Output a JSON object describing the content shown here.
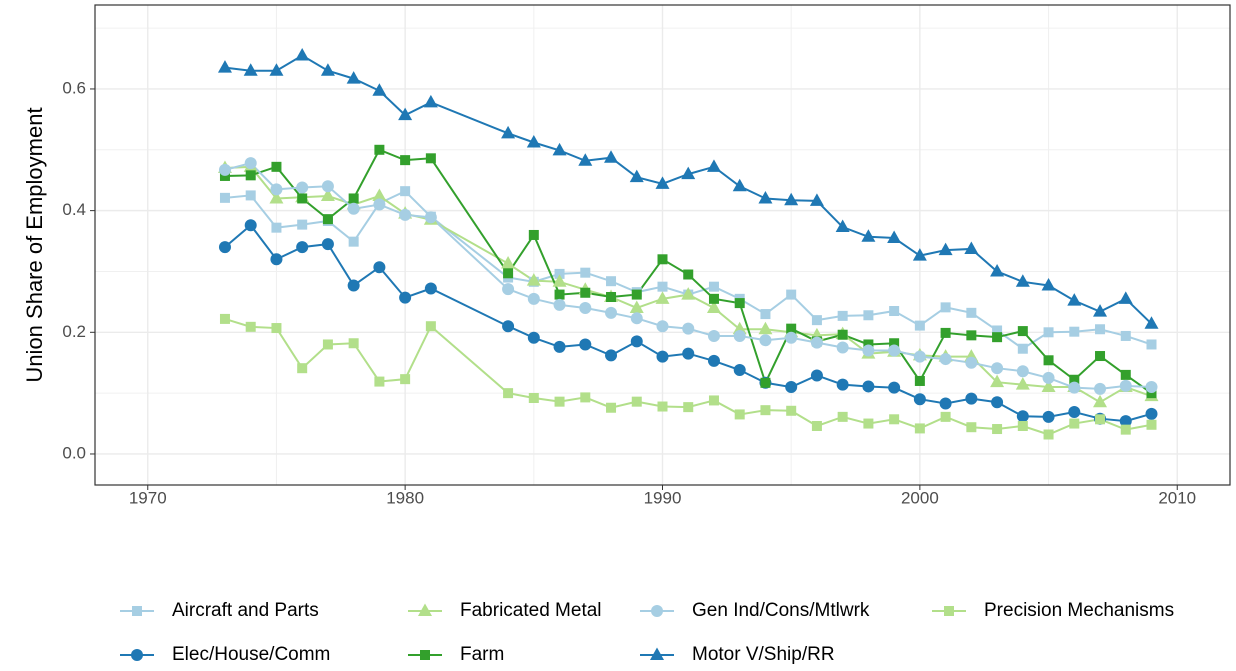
{
  "chart_data": {
    "type": "line",
    "y_label": "Union Share of Employment",
    "x": [
      1973,
      1974,
      1975,
      1976,
      1977,
      1978,
      1979,
      1980,
      1981,
      1984,
      1985,
      1986,
      1987,
      1988,
      1989,
      1990,
      1991,
      1992,
      1993,
      1994,
      1995,
      1996,
      1997,
      1998,
      1999,
      2000,
      2001,
      2002,
      2003,
      2004,
      2005,
      2006,
      2007,
      2008,
      2009
    ],
    "xlim": [
      1967.95,
      2012.05
    ],
    "xticks": [
      1970,
      1980,
      1990,
      2000,
      2010
    ],
    "ylim": [
      -0.051,
      0.738
    ],
    "yticks": [
      {
        "value": 0,
        "label": "0.0"
      },
      0.2,
      0.4,
      0.6
    ],
    "grid": true,
    "legend": "bottom",
    "series": [
      {
        "name": "Aircraft and Parts",
        "color": "#a6cee3",
        "marker": "square",
        "values": [
          0.421,
          0.425,
          0.372,
          0.377,
          0.383,
          0.349,
          0.412,
          0.432,
          0.39,
          0.29,
          0.283,
          0.296,
          0.298,
          0.284,
          0.266,
          0.275,
          0.262,
          0.275,
          0.255,
          0.23,
          0.262,
          0.22,
          0.227,
          0.228,
          0.235,
          0.211,
          0.241,
          0.232,
          0.203,
          0.173,
          0.2,
          0.201,
          0.205,
          0.194,
          0.18
        ]
      },
      {
        "name": "Elec/House/Comm",
        "color": "#1f78b4",
        "marker": "circle",
        "values": [
          0.34,
          0.376,
          0.32,
          0.34,
          0.345,
          0.277,
          0.307,
          0.257,
          0.272,
          0.21,
          0.191,
          0.176,
          0.18,
          0.162,
          0.185,
          0.16,
          0.165,
          0.153,
          0.138,
          0.117,
          0.11,
          0.129,
          0.114,
          0.111,
          0.109,
          0.09,
          0.083,
          0.091,
          0.085,
          0.062,
          0.061,
          0.069,
          0.058,
          0.054,
          0.066
        ]
      },
      {
        "name": "Fabricated Metal",
        "color": "#b2df8a",
        "marker": "triangle",
        "values": [
          0.47,
          0.472,
          0.42,
          0.422,
          0.424,
          0.41,
          0.424,
          0.395,
          0.385,
          0.313,
          0.285,
          0.283,
          0.27,
          0.258,
          0.24,
          0.255,
          0.262,
          0.24,
          0.205,
          0.205,
          0.2,
          0.195,
          0.197,
          0.165,
          0.168,
          0.162,
          0.16,
          0.16,
          0.118,
          0.114,
          0.11,
          0.11,
          0.085,
          0.11,
          0.095
        ]
      },
      {
        "name": "Farm",
        "color": "#33a02c",
        "marker": "square",
        "values": [
          0.457,
          0.458,
          0.472,
          0.42,
          0.386,
          0.42,
          0.5,
          0.483,
          0.486,
          0.297,
          0.36,
          0.262,
          0.265,
          0.258,
          0.262,
          0.32,
          0.295,
          0.255,
          0.248,
          0.117,
          0.206,
          0.185,
          0.196,
          0.18,
          0.182,
          0.12,
          0.199,
          0.195,
          0.192,
          0.202,
          0.154,
          0.122,
          0.161,
          0.13,
          0.1
        ]
      },
      {
        "name": "Gen Ind/Cons/Mtlwrk",
        "color": "#a6cee3",
        "marker": "circle",
        "values": [
          0.467,
          0.478,
          0.435,
          0.438,
          0.44,
          0.403,
          0.41,
          0.393,
          0.389,
          0.271,
          0.255,
          0.245,
          0.24,
          0.232,
          0.223,
          0.21,
          0.206,
          0.194,
          0.194,
          0.187,
          0.191,
          0.183,
          0.175,
          0.17,
          0.17,
          0.16,
          0.156,
          0.15,
          0.141,
          0.136,
          0.125,
          0.109,
          0.107,
          0.112,
          0.11
        ]
      },
      {
        "name": "Motor V/Ship/RR",
        "color": "#1f78b4",
        "marker": "triangle",
        "values": [
          0.635,
          0.63,
          0.63,
          0.655,
          0.63,
          0.617,
          0.597,
          0.557,
          0.578,
          0.527,
          0.512,
          0.499,
          0.482,
          0.487,
          0.455,
          0.444,
          0.46,
          0.472,
          0.44,
          0.42,
          0.417,
          0.416,
          0.373,
          0.357,
          0.355,
          0.326,
          0.335,
          0.337,
          0.3,
          0.283,
          0.277,
          0.252,
          0.234,
          0.255,
          0.214
        ]
      },
      {
        "name": "Precision Mechanisms",
        "color": "#b2df8a",
        "marker": "square",
        "values": [
          0.222,
          0.209,
          0.207,
          0.141,
          0.18,
          0.182,
          0.119,
          0.123,
          0.21,
          0.1,
          0.092,
          0.086,
          0.093,
          0.076,
          0.086,
          0.078,
          0.077,
          0.088,
          0.065,
          0.072,
          0.071,
          0.046,
          0.061,
          0.05,
          0.057,
          0.042,
          0.061,
          0.044,
          0.041,
          0.046,
          0.032,
          0.05,
          0.057,
          0.04,
          0.048
        ]
      }
    ]
  }
}
